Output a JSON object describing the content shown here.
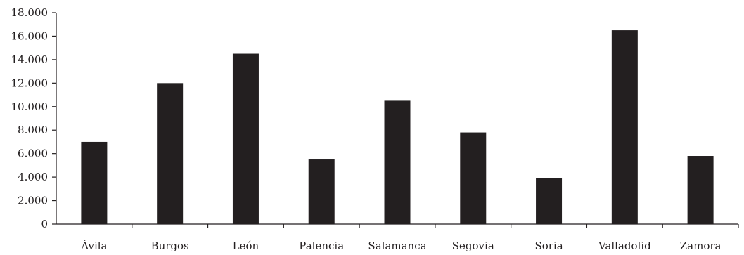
{
  "chart_data": {
    "type": "bar",
    "title": "",
    "xlabel": "",
    "ylabel": "",
    "categories": [
      "Ávila",
      "Burgos",
      "León",
      "Palencia",
      "Salamanca",
      "Segovia",
      "Soria",
      "Valladolid",
      "Zamora"
    ],
    "values": [
      7000,
      12000,
      14500,
      5500,
      10500,
      7800,
      3900,
      16500,
      5800
    ],
    "ylim": [
      0,
      18000
    ],
    "yticks": [
      0,
      2000,
      4000,
      6000,
      8000,
      10000,
      12000,
      14000,
      16000,
      18000
    ],
    "ytick_labels": [
      "0",
      "2.000",
      "4.000",
      "6.000",
      "8.000",
      "10.000",
      "12.000",
      "14.000",
      "16.000",
      "18.000"
    ],
    "grid": false,
    "legend": "none",
    "bar_color": "#231f20"
  }
}
